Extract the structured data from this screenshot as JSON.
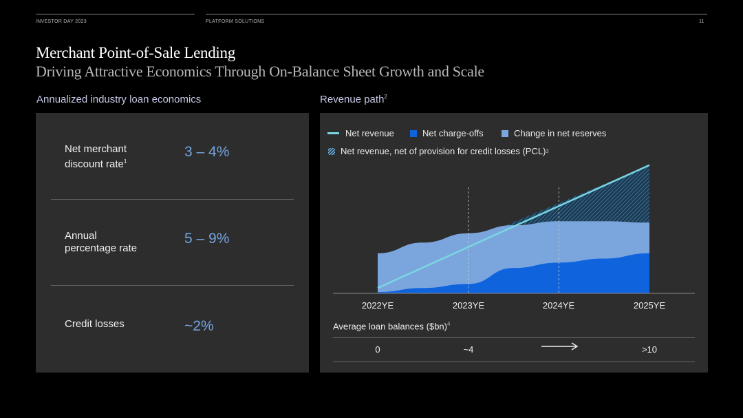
{
  "header": {
    "event": "INVESTOR DAY 2023",
    "segment": "PLATFORM SOLUTIONS",
    "page_number": "11"
  },
  "title": "Merchant Point-of-Sale Lending",
  "subtitle": "Driving Attractive Economics Through On-Balance Sheet Growth and Scale",
  "left": {
    "heading": "Annualized industry loan economics",
    "metrics": [
      {
        "label_line1": "Net merchant",
        "label_line2": "discount rate",
        "footnote": "1",
        "value": "3 – 4%"
      },
      {
        "label_line1": "Annual",
        "label_line2": "percentage rate",
        "footnote": "",
        "value": "5 – 9%"
      },
      {
        "label_line1": "Credit losses",
        "label_line2": "",
        "footnote": "",
        "value": "~2%"
      }
    ]
  },
  "right": {
    "heading": "Revenue path",
    "heading_footnote": "2",
    "balances_label": "Average loan balances ($bn)",
    "balances_footnote": "4",
    "balances": [
      "0",
      "~4",
      "→",
      ">10"
    ]
  },
  "colors": {
    "net_revenue": "#7ad6e2",
    "net_charge_offs": "#0f63dd",
    "change_in_net_reserves": "#7aa6dd",
    "pcl_hatch": "#1b3a55",
    "value_accent": "#74a3dd"
  },
  "chart_data": {
    "type": "area",
    "title": "Revenue path",
    "categories": [
      "2022YE",
      "2023YE",
      "2024YE",
      "2025YE"
    ],
    "x": [
      0,
      1,
      2,
      3
    ],
    "ylim": [
      0,
      100
    ],
    "units": "illustrative (no y-axis scale shown)",
    "legend": [
      {
        "key": "net_revenue",
        "label": "Net revenue",
        "symbol": "line"
      },
      {
        "key": "net_charge_offs",
        "label": "Net charge-offs",
        "symbol": "box"
      },
      {
        "key": "change_in_net_reserves",
        "label": "Change in net reserves",
        "symbol": "box"
      },
      {
        "key": "pcl_net_revenue",
        "label": "Net revenue, net of provision for credit losses (PCL)",
        "symbol": "hatch",
        "footnote": "3"
      }
    ],
    "series": [
      {
        "name": "Net revenue",
        "key": "net_revenue",
        "kind": "line",
        "points": [
          [
            0,
            4
          ],
          [
            3,
            96
          ]
        ]
      },
      {
        "name": "Net charge-offs",
        "key": "net_charge_offs",
        "kind": "stacked-area",
        "points": [
          [
            0,
            1
          ],
          [
            0.5,
            4
          ],
          [
            1,
            7
          ],
          [
            1.5,
            19
          ],
          [
            2,
            23
          ],
          [
            2.5,
            26
          ],
          [
            3,
            30
          ]
        ]
      },
      {
        "name": "Change in net reserves (top of stack)",
        "key": "change_in_net_reserves",
        "kind": "stacked-area",
        "points": [
          [
            0,
            30
          ],
          [
            0.5,
            38
          ],
          [
            1,
            45
          ],
          [
            1.5,
            51
          ],
          [
            2,
            54
          ],
          [
            2.5,
            54
          ],
          [
            3,
            53
          ]
        ]
      },
      {
        "name": "Net revenue, net of PCL",
        "key": "pcl_net_revenue",
        "kind": "hatched-region",
        "between": [
          "change_in_net_reserves",
          "net_revenue"
        ],
        "x_range": [
          1.4,
          3
        ]
      }
    ],
    "vertical_markers": [
      1,
      2
    ]
  }
}
